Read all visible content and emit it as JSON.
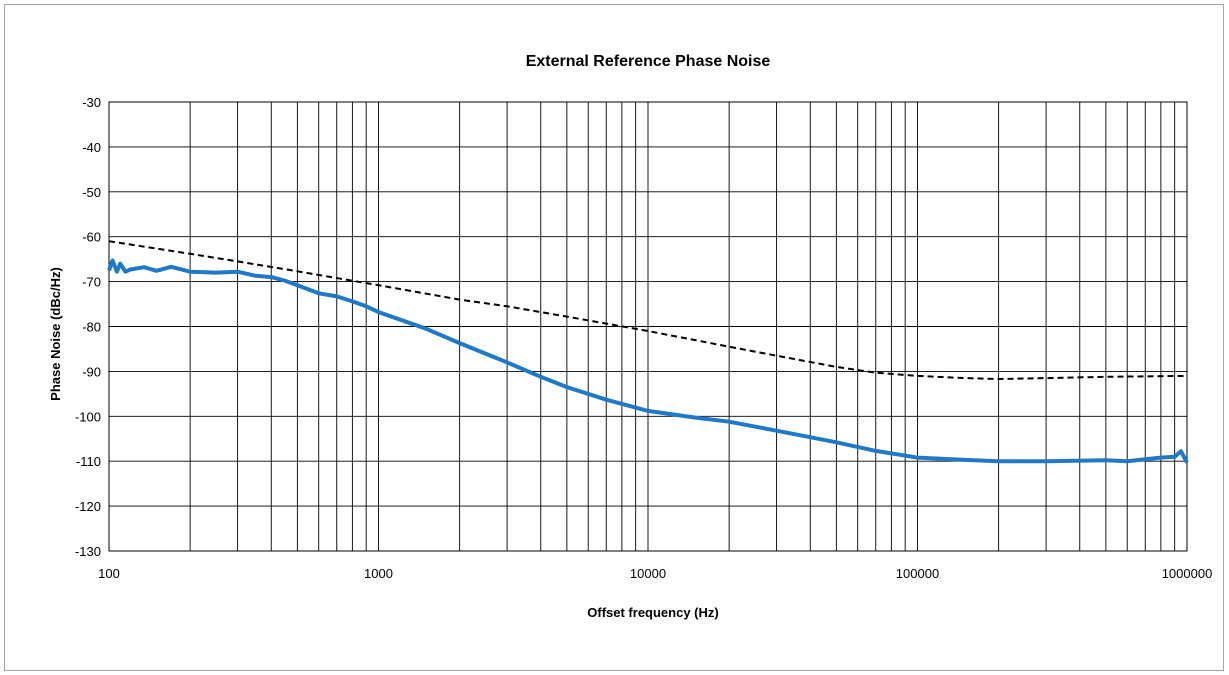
{
  "chart_data": {
    "type": "line",
    "title": "External Reference Phase Noise",
    "xlabel": "Offset frequency (Hz)",
    "ylabel": "Phase Noise (dBc/Hz)",
    "x_scale": "log",
    "xlim": [
      100,
      1000000
    ],
    "ylim": [
      -130,
      -30
    ],
    "x_ticks": [
      "100",
      "1000",
      "10000",
      "100000",
      "1000000"
    ],
    "y_ticks": [
      "-30",
      "-40",
      "-50",
      "-60",
      "-70",
      "-80",
      "-90",
      "-100",
      "-110",
      "-120",
      "-130"
    ],
    "grid": true,
    "legend": "none",
    "series": [
      {
        "color": "#1f78c8",
        "style": "solid",
        "points": [
          [
            100,
            -67.5
          ],
          [
            103,
            -65.3
          ],
          [
            107,
            -67.8
          ],
          [
            110,
            -66.0
          ],
          [
            115,
            -67.8
          ],
          [
            120,
            -67.3
          ],
          [
            135,
            -66.8
          ],
          [
            150,
            -67.6
          ],
          [
            170,
            -66.7
          ],
          [
            200,
            -67.8
          ],
          [
            250,
            -68.0
          ],
          [
            300,
            -67.8
          ],
          [
            350,
            -68.7
          ],
          [
            400,
            -69.0
          ],
          [
            450,
            -69.8
          ],
          [
            500,
            -70.8
          ],
          [
            600,
            -72.6
          ],
          [
            700,
            -73.3
          ],
          [
            800,
            -74.4
          ],
          [
            900,
            -75.5
          ],
          [
            1000,
            -76.8
          ],
          [
            1500,
            -80.5
          ],
          [
            2000,
            -83.7
          ],
          [
            3000,
            -88.0
          ],
          [
            4000,
            -91.2
          ],
          [
            5000,
            -93.5
          ],
          [
            7000,
            -96.3
          ],
          [
            10000,
            -98.8
          ],
          [
            15000,
            -100.3
          ],
          [
            20000,
            -101.2
          ],
          [
            30000,
            -103.2
          ],
          [
            50000,
            -105.8
          ],
          [
            70000,
            -107.7
          ],
          [
            100000,
            -109.2
          ],
          [
            150000,
            -109.7
          ],
          [
            200000,
            -110.0
          ],
          [
            300000,
            -110.0
          ],
          [
            500000,
            -109.8
          ],
          [
            600000,
            -110.0
          ],
          [
            800000,
            -109.2
          ],
          [
            900000,
            -109.0
          ],
          [
            950000,
            -107.8
          ],
          [
            1000000,
            -110.3
          ]
        ]
      },
      {
        "color": "#000000",
        "style": "dashed",
        "points": [
          [
            100,
            -61.0
          ],
          [
            200,
            -63.8
          ],
          [
            300,
            -65.5
          ],
          [
            500,
            -67.7
          ],
          [
            1000,
            -70.8
          ],
          [
            2000,
            -74.0
          ],
          [
            3000,
            -75.5
          ],
          [
            5000,
            -77.8
          ],
          [
            10000,
            -81.0
          ],
          [
            20000,
            -84.5
          ],
          [
            30000,
            -86.5
          ],
          [
            50000,
            -89.0
          ],
          [
            70000,
            -90.3
          ],
          [
            100000,
            -91.0
          ],
          [
            150000,
            -91.5
          ],
          [
            200000,
            -91.7
          ],
          [
            300000,
            -91.5
          ],
          [
            500000,
            -91.2
          ],
          [
            1000000,
            -91.0
          ]
        ]
      }
    ]
  }
}
